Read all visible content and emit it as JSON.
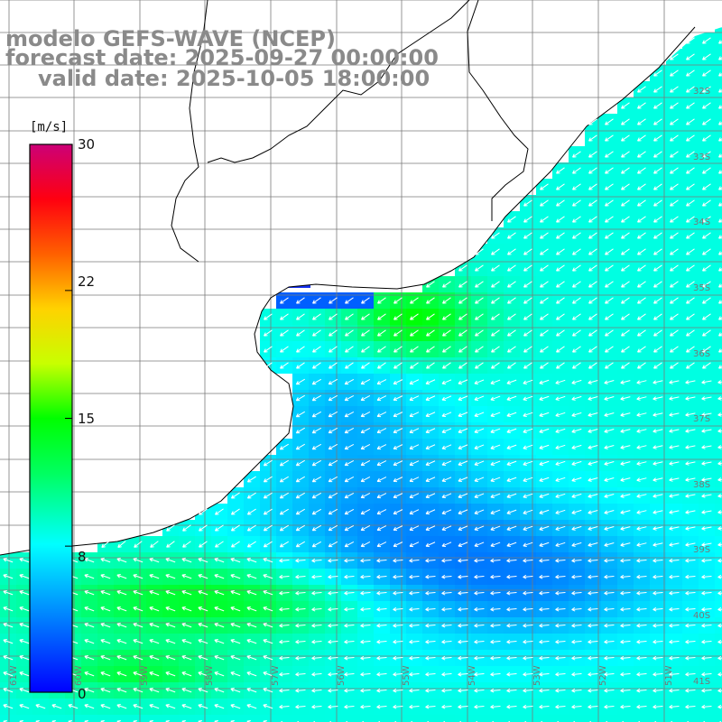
{
  "title": {
    "model": "modelo GEFS-WAVE (NCEP)",
    "forecast": "forecast date: 2025-09-27 00:00:00",
    "valid": "valid date: 2025-10-05 18:00:00"
  },
  "colorbar": {
    "units": "[m/s]",
    "ticks": [
      "30",
      "22",
      "15",
      "8",
      "0"
    ],
    "tick_values": [
      30,
      22,
      15,
      8,
      0
    ],
    "range": [
      0,
      30
    ],
    "colors": [
      "#0000ff",
      "#00ffff",
      "#00ff00",
      "#ffff00",
      "#ff8000",
      "#ff0000",
      "#cc0066"
    ]
  },
  "map": {
    "lat_labels": [
      "32S",
      "33S",
      "34S",
      "35S",
      "36S",
      "37S",
      "38S",
      "39S",
      "40S",
      "41S"
    ],
    "lon_labels": [
      "61W",
      "60W",
      "59W",
      "58W",
      "57W",
      "56W",
      "55W",
      "54W",
      "53W",
      "52W",
      "51W"
    ],
    "land_color": "#ffffff",
    "grid_color": "#7a7a7a",
    "coast_color": "#000000",
    "arrow_color": "#ffffff"
  }
}
